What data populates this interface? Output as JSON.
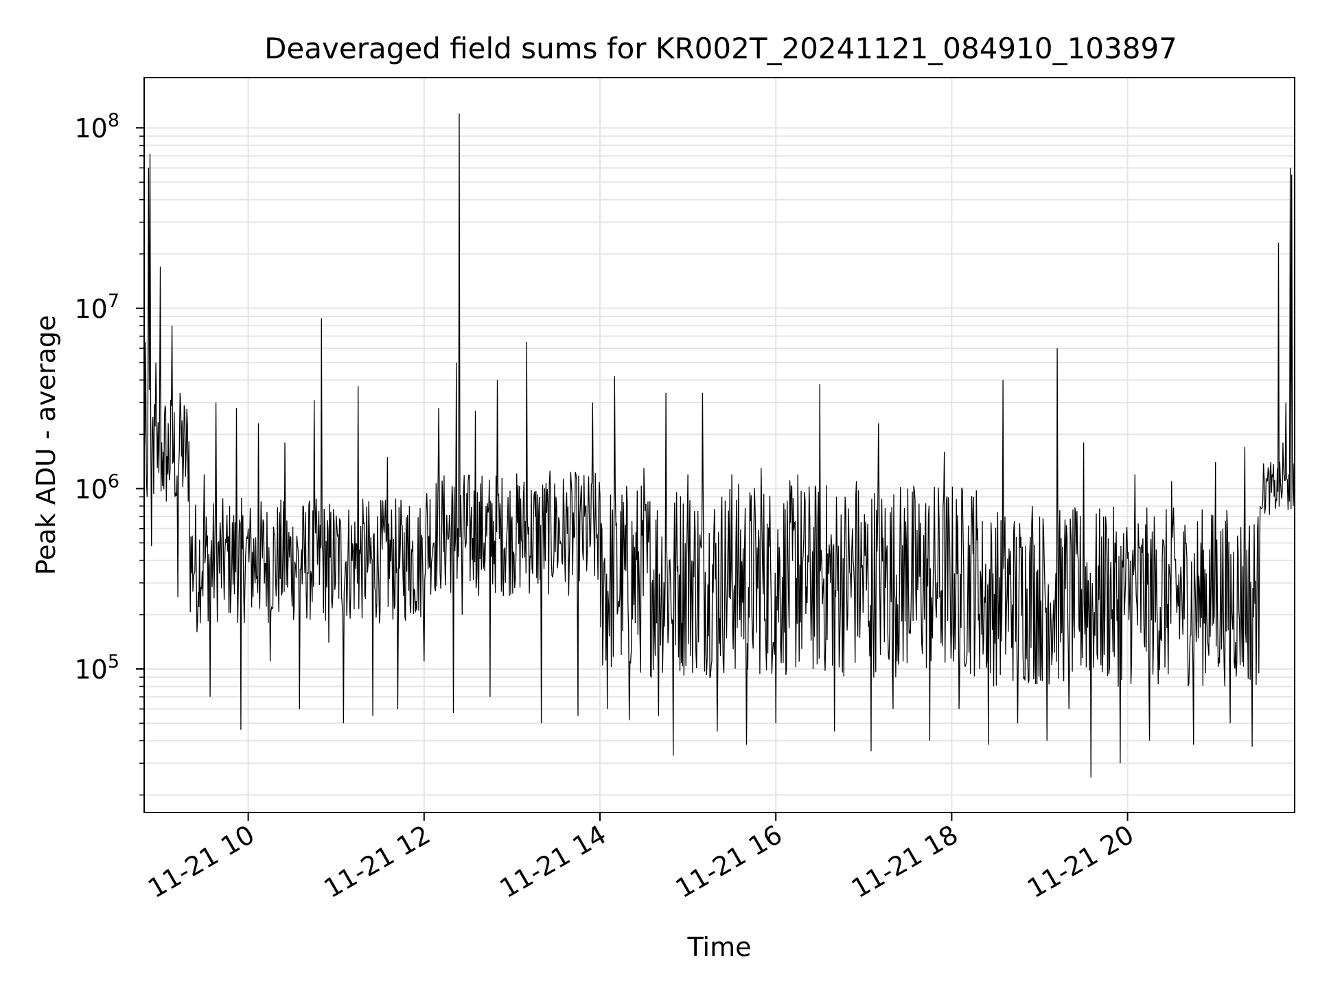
{
  "chart_data": {
    "type": "line",
    "title": "Deaveraged field sums for KR002T_20241121_084910_103897",
    "xlabel": "Time",
    "ylabel": "Peak ADU - average",
    "yscale": "log",
    "xlim": [
      "2024-11-21 08:49",
      "2024-11-21 21:54"
    ],
    "ylim": [
      16000,
      190000000
    ],
    "grid": true,
    "line_color": "#000000",
    "grid_color": "#e5e5e5",
    "x_ticks": [
      {
        "t": "2024-11-21 10:00",
        "label": "11-21 10"
      },
      {
        "t": "2024-11-21 12:00",
        "label": "11-21 12"
      },
      {
        "t": "2024-11-21 14:00",
        "label": "11-21 14"
      },
      {
        "t": "2024-11-21 16:00",
        "label": "11-21 16"
      },
      {
        "t": "2024-11-21 18:00",
        "label": "11-21 18"
      },
      {
        "t": "2024-11-21 20:00",
        "label": "11-21 20"
      }
    ],
    "y_ticks": [
      {
        "value": 100000,
        "base": "10",
        "exp": "5"
      },
      {
        "value": 1000000,
        "base": "10",
        "exp": "6"
      },
      {
        "value": 10000000,
        "base": "10",
        "exp": "7"
      },
      {
        "value": 100000000,
        "base": "10",
        "exp": "8"
      }
    ],
    "series": [
      {
        "points": [
          [
            "2024-11-21 08:49",
            1500000
          ],
          [
            "2024-11-21 08:50",
            6500000
          ],
          [
            "2024-11-21 08:51",
            900000
          ],
          [
            "2024-11-21 08:52",
            60000000
          ],
          [
            "2024-11-21 08:53",
            72000000
          ],
          [
            "2024-11-21 08:54",
            480000
          ],
          [
            "2024-11-21 08:55",
            2500000
          ],
          [
            "2024-11-21 08:57",
            5000000
          ],
          [
            "2024-11-21 08:58",
            1300000
          ],
          [
            "2024-11-21 09:00",
            17000000
          ],
          [
            "2024-11-21 09:02",
            1600000
          ],
          [
            "2024-11-21 09:05",
            1200000
          ],
          [
            "2024-11-21 09:08",
            8000000
          ],
          [
            "2024-11-21 09:10",
            900000
          ],
          [
            "2024-11-21 09:12",
            250000
          ],
          [
            "2024-11-21 09:14",
            2700000
          ],
          [
            "2024-11-21 09:20",
            600000
          ],
          [
            "2024-11-21 09:25",
            160000
          ],
          [
            "2024-11-21 09:30",
            1200000
          ],
          [
            "2024-11-21 09:34",
            70000
          ],
          [
            "2024-11-21 09:38",
            3000000
          ],
          [
            "2024-11-21 09:45",
            500000
          ],
          [
            "2024-11-21 09:52",
            2800000
          ],
          [
            "2024-11-21 09:55",
            46000
          ],
          [
            "2024-11-21 10:00",
            600000
          ],
          [
            "2024-11-21 10:07",
            2300000
          ],
          [
            "2024-11-21 10:15",
            110000
          ],
          [
            "2024-11-21 10:25",
            1800000
          ],
          [
            "2024-11-21 10:35",
            60000
          ],
          [
            "2024-11-21 10:45",
            3100000
          ],
          [
            "2024-11-21 10:50",
            8800000
          ],
          [
            "2024-11-21 10:55",
            140000
          ],
          [
            "2024-11-21 11:05",
            50000
          ],
          [
            "2024-11-21 11:15",
            3700000
          ],
          [
            "2024-11-21 11:25",
            55000
          ],
          [
            "2024-11-21 11:35",
            1500000
          ],
          [
            "2024-11-21 11:42",
            60000
          ],
          [
            "2024-11-21 11:50",
            800000
          ],
          [
            "2024-11-21 12:00",
            110000
          ],
          [
            "2024-11-21 12:10",
            2800000
          ],
          [
            "2024-11-21 12:20",
            57000
          ],
          [
            "2024-11-21 12:22",
            5000000
          ],
          [
            "2024-11-21 12:24",
            120000000
          ],
          [
            "2024-11-21 12:26",
            200000
          ],
          [
            "2024-11-21 12:35",
            2700000
          ],
          [
            "2024-11-21 12:45",
            70000
          ],
          [
            "2024-11-21 12:50",
            4000000
          ],
          [
            "2024-11-21 13:00",
            700000
          ],
          [
            "2024-11-21 13:10",
            6500000
          ],
          [
            "2024-11-21 13:20",
            50000
          ],
          [
            "2024-11-21 13:30",
            900000
          ],
          [
            "2024-11-21 13:45",
            55000
          ],
          [
            "2024-11-21 13:55",
            3000000
          ],
          [
            "2024-11-21 14:05",
            60000
          ],
          [
            "2024-11-21 14:10",
            4200000
          ],
          [
            "2024-11-21 14:20",
            52000
          ],
          [
            "2024-11-21 14:30",
            1300000
          ],
          [
            "2024-11-21 14:40",
            55000
          ],
          [
            "2024-11-21 14:45",
            3400000
          ],
          [
            "2024-11-21 14:50",
            33000
          ],
          [
            "2024-11-21 15:00",
            1200000
          ],
          [
            "2024-11-21 15:10",
            3400000
          ],
          [
            "2024-11-21 15:20",
            45000
          ],
          [
            "2024-11-21 15:30",
            1200000
          ],
          [
            "2024-11-21 15:40",
            38000
          ],
          [
            "2024-11-21 15:50",
            1300000
          ],
          [
            "2024-11-21 16:00",
            50000
          ],
          [
            "2024-11-21 16:15",
            1200000
          ],
          [
            "2024-11-21 16:30",
            3800000
          ],
          [
            "2024-11-21 16:40",
            45000
          ],
          [
            "2024-11-21 16:55",
            1100000
          ],
          [
            "2024-11-21 17:05",
            35000
          ],
          [
            "2024-11-21 17:10",
            2300000
          ],
          [
            "2024-11-21 17:20",
            60000
          ],
          [
            "2024-11-21 17:30",
            1000000
          ],
          [
            "2024-11-21 17:45",
            40000
          ],
          [
            "2024-11-21 17:55",
            1600000
          ],
          [
            "2024-11-21 18:05",
            60000
          ],
          [
            "2024-11-21 18:15",
            900000
          ],
          [
            "2024-11-21 18:25",
            38000
          ],
          [
            "2024-11-21 18:35",
            4000000
          ],
          [
            "2024-11-21 18:45",
            50000
          ],
          [
            "2024-11-21 18:55",
            800000
          ],
          [
            "2024-11-21 19:05",
            40000
          ],
          [
            "2024-11-21 19:12",
            6000000
          ],
          [
            "2024-11-21 19:20",
            60000
          ],
          [
            "2024-11-21 19:30",
            1800000
          ],
          [
            "2024-11-21 19:35",
            25000
          ],
          [
            "2024-11-21 19:45",
            700000
          ],
          [
            "2024-11-21 19:55",
            30000
          ],
          [
            "2024-11-21 20:05",
            1200000
          ],
          [
            "2024-11-21 20:15",
            40000
          ],
          [
            "2024-11-21 20:30",
            1100000
          ],
          [
            "2024-11-21 20:45",
            38000
          ],
          [
            "2024-11-21 21:00",
            1400000
          ],
          [
            "2024-11-21 21:10",
            50000
          ],
          [
            "2024-11-21 21:20",
            1700000
          ],
          [
            "2024-11-21 21:25",
            37000
          ],
          [
            "2024-11-21 21:30",
            400000
          ],
          [
            "2024-11-21 21:35",
            1100000
          ],
          [
            "2024-11-21 21:40",
            900000
          ],
          [
            "2024-11-21 21:43",
            23000000
          ],
          [
            "2024-11-21 21:46",
            1800000
          ],
          [
            "2024-11-21 21:48",
            3000000
          ],
          [
            "2024-11-21 21:50",
            1200000
          ],
          [
            "2024-11-21 21:51",
            60000000
          ],
          [
            "2024-11-21 21:52",
            55000000
          ],
          [
            "2024-11-21 21:53",
            800000
          ],
          [
            "2024-11-21 21:54",
            600000
          ]
        ]
      }
    ]
  }
}
